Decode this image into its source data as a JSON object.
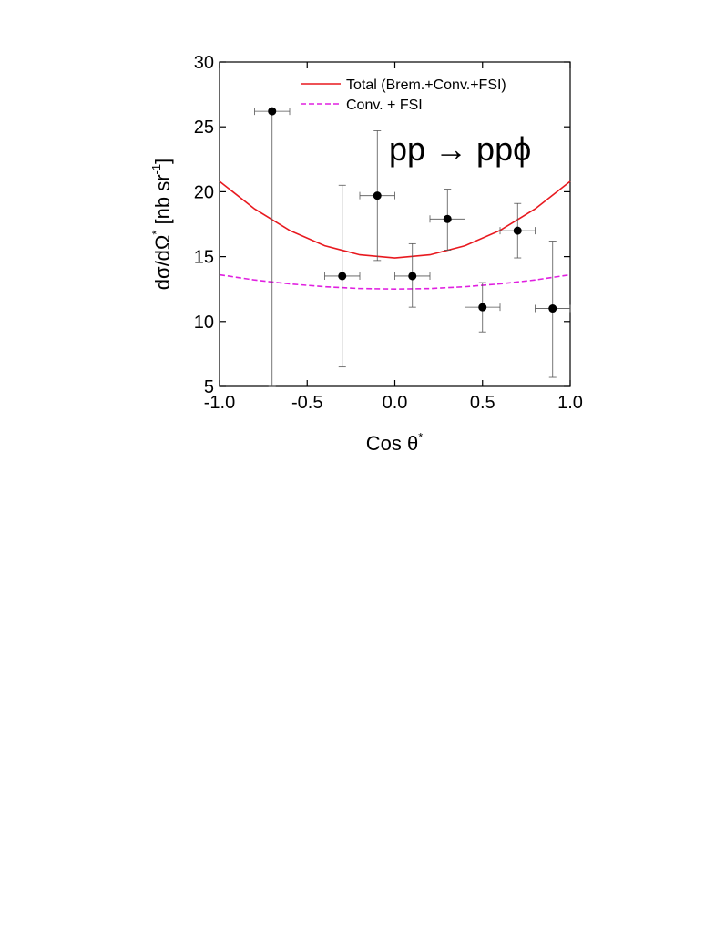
{
  "chart_data": {
    "type": "scatter",
    "annotation": "pp → ppϕ",
    "xlabel": "Cos θ",
    "xlabel_sup": "*",
    "ylabel": "dσ/dΩ",
    "ylabel_sup": "*",
    "ylabel_unit": " [nb sr",
    "ylabel_unit_sup": "-1",
    "ylabel_unit_end": "]",
    "xlim": [
      -1.0,
      1.0
    ],
    "xticks": [
      {
        "value": -1.0,
        "label": "-1.0"
      },
      {
        "value": -0.5,
        "label": "-0.5"
      },
      {
        "value": 0,
        "label": "0.0"
      },
      {
        "value": 0.5,
        "label": "0.5"
      },
      {
        "value": 1.0,
        "label": "1.0"
      }
    ],
    "ylim": [
      5,
      30
    ],
    "yticks": [
      5,
      10,
      15,
      20,
      25,
      30
    ],
    "legend": "top-right",
    "points": {
      "color": "#000000",
      "x": [
        -0.7,
        -0.3,
        -0.1,
        0.1,
        0.3,
        0.5,
        0.7,
        0.9
      ],
      "y": [
        26.2,
        13.5,
        19.7,
        13.5,
        17.9,
        11.1,
        17.0,
        11.0
      ],
      "xerr": [
        0.1,
        0.1,
        0.1,
        0.1,
        0.1,
        0.1,
        0.1,
        0.1
      ],
      "yerr_low": [
        21.2,
        7.0,
        5.0,
        2.4,
        2.4,
        1.9,
        2.1,
        5.3
      ],
      "yerr_high": [
        0,
        7.0,
        5.0,
        2.5,
        2.3,
        1.9,
        2.1,
        5.2
      ]
    },
    "series": [
      {
        "name": "Total (Brem.+Conv.+FSI)",
        "color": "#e8191f",
        "dash": false,
        "x": [
          -1.0,
          -0.8,
          -0.6,
          -0.4,
          -0.2,
          0,
          0.2,
          0.4,
          0.6,
          0.8,
          1.0
        ],
        "values": [
          20.8,
          18.68,
          17.02,
          15.84,
          15.14,
          14.9,
          15.14,
          15.84,
          17.02,
          18.68,
          20.8
        ]
      },
      {
        "name": "Conv. + FSI",
        "color": "#e020e0",
        "dash": true,
        "x": [
          -1.0,
          -0.8,
          -0.6,
          -0.4,
          -0.2,
          0,
          0.2,
          0.4,
          0.6,
          0.8,
          1.0
        ],
        "values": [
          13.6,
          13.2,
          12.9,
          12.68,
          12.54,
          12.5,
          12.54,
          12.68,
          12.9,
          13.2,
          13.6
        ]
      }
    ]
  }
}
